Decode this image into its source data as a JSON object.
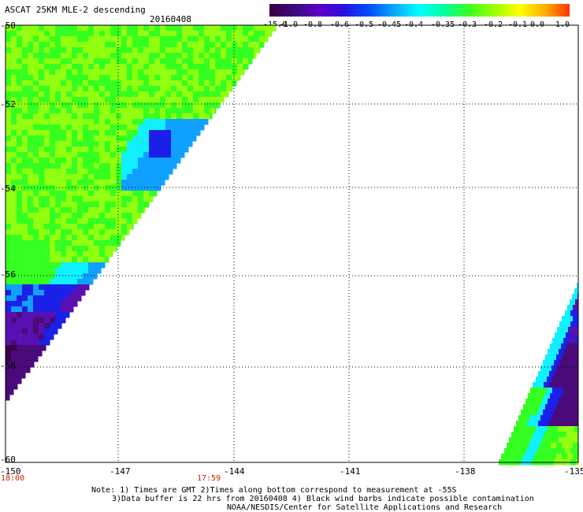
{
  "header": {
    "title": "ASCAT 25KM MLE-2 descending",
    "date": "20160408"
  },
  "colorbar": {
    "labels": [
      "-15.0",
      "-1.0",
      "-0.8",
      "-0.6",
      "-0.5",
      "-0.45",
      "-0.4",
      "-0.35",
      "-0.3",
      "-0.2",
      "-0.1",
      "0.0",
      "1.0"
    ],
    "colors": [
      "#3a0040",
      "#3b0a7a",
      "#5d00c8",
      "#2a10e0",
      "#0050ff",
      "#0aa8ff",
      "#00ffff",
      "#00ff9a",
      "#3cff20",
      "#9cff00",
      "#ffff00",
      "#ffb000",
      "#ff3300"
    ]
  },
  "map": {
    "lat_labels": [
      "-50",
      "-52",
      "-54",
      "-56",
      "-58",
      "-60"
    ],
    "lon_labels": [
      "-150",
      "-147",
      "-144",
      "-141",
      "-138",
      "-135"
    ],
    "swath_colors": {
      "deep_purple": "#3c0044",
      "purple": "#4a0a7a",
      "violet": "#5a10b0",
      "blue": "#1a20e8",
      "sky": "#10a0ff",
      "cyan": "#10f0ff",
      "green": "#34ff20",
      "yellow_green": "#90ff10"
    }
  },
  "times": {
    "start": "18:00",
    "mid": "17:59",
    "color": "#cc2200"
  },
  "notes": {
    "line1": "Note: 1) Times are GMT 2)Times along bottom correspond to measurement at -55S",
    "line2": "3)Data buffer is 22 hrs from 20160408 4) Black wind barbs indicate possible contamination",
    "line3": "NOAA/NESDIS/Center for Satellite Applications and Research"
  }
}
